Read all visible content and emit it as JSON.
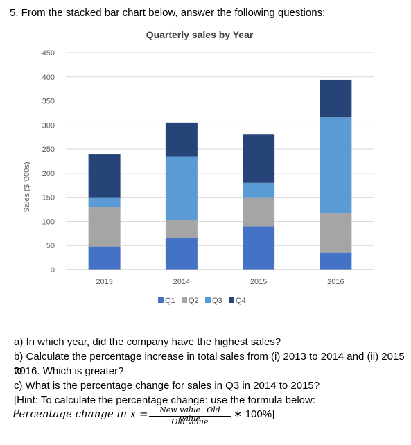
{
  "question_heading": "5. From the stacked bar chart below, answer the following questions:",
  "chart_data": {
    "type": "bar",
    "stacked": true,
    "title": "Quarterly sales by Year",
    "xlabel": "",
    "ylabel": "Sales ($ '000s)",
    "ylim": [
      0,
      450
    ],
    "yticks": [
      0,
      50,
      100,
      150,
      200,
      250,
      300,
      350,
      400,
      450
    ],
    "categories": [
      "2013",
      "2014",
      "2015",
      "2016"
    ],
    "series": [
      {
        "name": "Q1",
        "color": "#4472c4",
        "values": [
          48,
          65,
          90,
          35
        ]
      },
      {
        "name": "Q2",
        "color": "#a5a5a5",
        "values": [
          82,
          38,
          60,
          82
        ]
      },
      {
        "name": "Q3",
        "color": "#5b9bd5",
        "values": [
          20,
          132,
          30,
          199
        ]
      },
      {
        "name": "Q4",
        "color": "#264478",
        "values": [
          90,
          70,
          100,
          78
        ]
      }
    ],
    "grid": true,
    "legend": "bottom"
  },
  "questions": {
    "a": "a) In which year, did the company have the highest sales?",
    "b1": "b) Calculate the percentage increase in total sales from (i) 2013 to 2014 and (ii) 2015 to",
    "b2": "2016. Which is greater?",
    "c": "c) What is the percentage change for sales in Q3 in 2014 to 2015?",
    "hint": "[Hint: To calculate the percentage change: use the formula below:",
    "formula_lhs": "Percentage change in x =",
    "formula_num": "New value−Old value",
    "formula_den": "Old value",
    "formula_tail": "∗ 100%]"
  }
}
